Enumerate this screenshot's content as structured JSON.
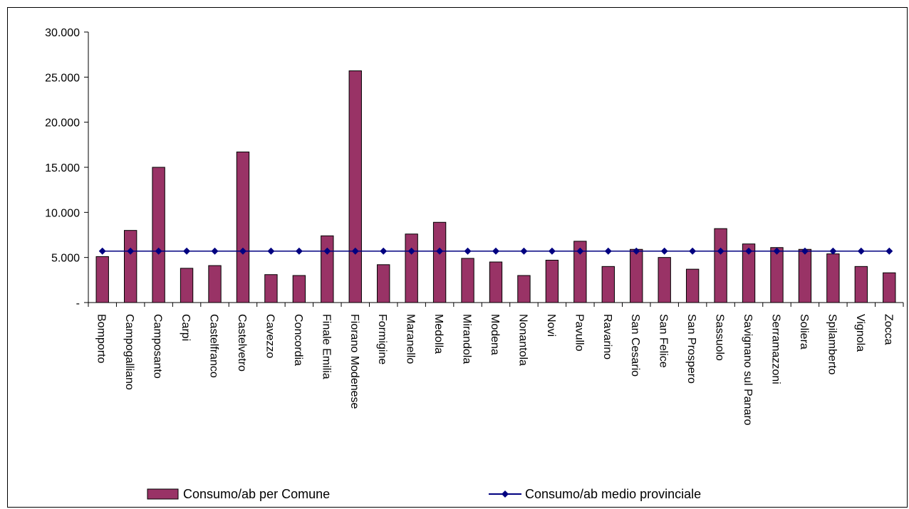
{
  "chart_data": {
    "type": "bar",
    "categories": [
      "Bomporto",
      "Campogalliano",
      "Camposanto",
      "Carpi",
      "Castelfranco",
      "Castelvetro",
      "Cavezzo",
      "Concordia",
      "Finale Emilia",
      "Fiorano Modenese",
      "Formigine",
      "Maranello",
      "Medolla",
      "Mirandola",
      "Modena",
      "Nonantola",
      "Novi",
      "Pavullo",
      "Ravarino",
      "San Cesario",
      "San Felice",
      "San Prospero",
      "Sassuolo",
      "Savignano sul Panaro",
      "Serramazzoni",
      "Soliera",
      "Spilamberto",
      "Vignola",
      "Zocca"
    ],
    "series": [
      {
        "name": "Consumo/ab per Comune",
        "kind": "bar",
        "color": "#993366",
        "values": [
          5100,
          8000,
          15000,
          3800,
          4100,
          16700,
          3100,
          3000,
          7400,
          25700,
          4200,
          7600,
          8900,
          4900,
          4500,
          3000,
          4700,
          6800,
          4000,
          5900,
          5000,
          3700,
          8200,
          6500,
          6100,
          5900,
          5400,
          4000,
          3300
        ]
      },
      {
        "name": "Consumo/ab medio provinciale",
        "kind": "line",
        "color": "#000080",
        "values": [
          5700,
          5700,
          5700,
          5700,
          5700,
          5700,
          5700,
          5700,
          5700,
          5700,
          5700,
          5700,
          5700,
          5700,
          5700,
          5700,
          5700,
          5700,
          5700,
          5700,
          5700,
          5700,
          5700,
          5700,
          5700,
          5700,
          5700,
          5700,
          5700
        ]
      }
    ],
    "ylim": [
      0,
      30000
    ],
    "ytick_values": [
      0,
      5000,
      10000,
      15000,
      20000,
      25000,
      30000
    ],
    "ytick_labels": [
      "-",
      "5.000",
      "10.000",
      "15.000",
      "20.000",
      "25.000",
      "30.000"
    ],
    "grid": false,
    "legend_position": "bottom"
  }
}
